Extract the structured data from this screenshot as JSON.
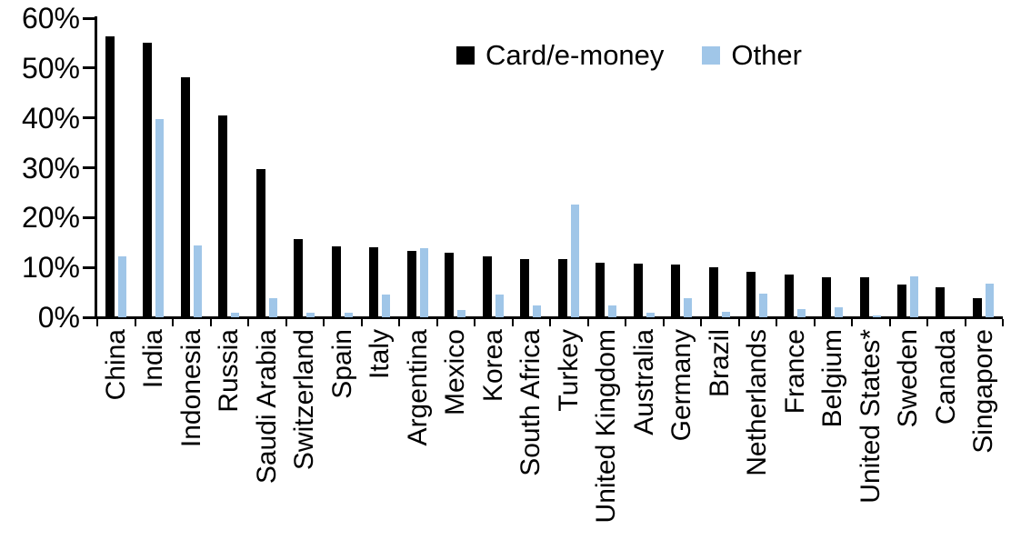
{
  "chart_data": {
    "type": "bar",
    "title": "",
    "xlabel": "",
    "ylabel": "",
    "categories": [
      "China",
      "India",
      "Indonesia",
      "Russia",
      "Saudi Arabia",
      "Switzerland",
      "Spain",
      "Italy",
      "Argentina",
      "Mexico",
      "Korea",
      "South Africa",
      "Turkey",
      "United Kingdom",
      "Australia",
      "Germany",
      "Brazil",
      "Netherlands",
      "France",
      "Belgium",
      "United States*",
      "Sweden",
      "Canada",
      "Singapore"
    ],
    "series": [
      {
        "name": "Card/e-money",
        "color": "#000000",
        "values": [
          56.3,
          55.0,
          48.2,
          40.4,
          29.8,
          15.6,
          14.2,
          14.0,
          13.4,
          13.0,
          12.2,
          11.7,
          11.6,
          10.9,
          10.8,
          10.6,
          10.0,
          9.2,
          8.6,
          8.1,
          8.0,
          6.6,
          6.1,
          3.9
        ]
      },
      {
        "name": "Other",
        "color": "#A0C6E8",
        "values": [
          12.3,
          39.7,
          14.5,
          1.0,
          3.9,
          0.9,
          0.9,
          4.5,
          13.8,
          1.4,
          4.6,
          2.3,
          22.6,
          2.3,
          1.0,
          3.9,
          1.1,
          4.7,
          1.6,
          2.0,
          0.4,
          8.2,
          0.0,
          6.7
        ]
      }
    ],
    "ylim": [
      0,
      60
    ],
    "ytick_step": 10,
    "ytick_labels": [
      "0%",
      "10%",
      "20%",
      "30%",
      "40%",
      "50%",
      "60%"
    ],
    "grid": false,
    "legend_position": "top-center"
  }
}
